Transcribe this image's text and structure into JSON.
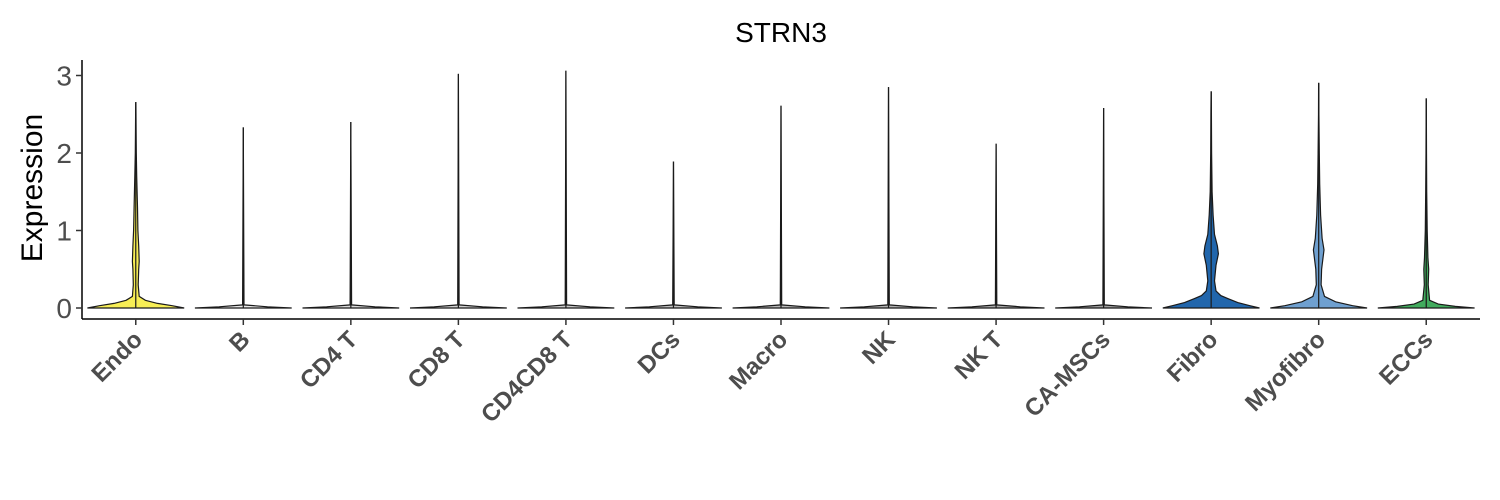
{
  "chart_data": {
    "type": "violin",
    "title": "STRN3",
    "xlabel": "",
    "ylabel": "Expression",
    "ylim": [
      -0.15,
      3.2
    ],
    "yticks": [
      0,
      1,
      2,
      3
    ],
    "grid": false,
    "legend": "none",
    "categories": [
      "Endo",
      "B",
      "CD4 T",
      "CD8 T",
      "CD4CD8 T",
      "DCs",
      "Macro",
      "NK",
      "NK T",
      "CA-MSCs",
      "Fibro",
      "Myofibro",
      "ECCs"
    ],
    "colors": [
      "#F7EE55",
      "#E8E8E8",
      "#D9D9D9",
      "#D0D0D0",
      "#C8C8C8",
      "#C0C0C0",
      "#B8B8B8",
      "#B0B0B0",
      "#A8A8A8",
      "#A0A0A0",
      "#2166AC",
      "#6FA0D0",
      "#41AB5D"
    ],
    "max_values": [
      2.65,
      2.33,
      2.4,
      3.02,
      3.06,
      1.89,
      2.61,
      2.85,
      2.12,
      2.58,
      2.79,
      2.9,
      2.7
    ],
    "density_profiles": [
      [
        [
          0,
          1.0
        ],
        [
          0.03,
          0.75
        ],
        [
          0.06,
          0.45
        ],
        [
          0.1,
          0.2
        ],
        [
          0.15,
          0.07
        ],
        [
          0.3,
          0.05
        ],
        [
          0.5,
          0.06
        ],
        [
          0.6,
          0.07
        ],
        [
          0.8,
          0.06
        ],
        [
          1.0,
          0.045
        ],
        [
          1.3,
          0.035
        ],
        [
          1.7,
          0.02
        ],
        [
          2.0,
          0.01
        ],
        [
          2.3,
          0.006
        ],
        [
          2.65,
          0.002
        ]
      ],
      [
        [
          0,
          1.0
        ],
        [
          0.015,
          0.5
        ],
        [
          0.04,
          0.015
        ],
        [
          2.33,
          0.0
        ]
      ],
      [
        [
          0,
          1.0
        ],
        [
          0.015,
          0.5
        ],
        [
          0.04,
          0.015
        ],
        [
          2.4,
          0.0
        ]
      ],
      [
        [
          0,
          1.0
        ],
        [
          0.015,
          0.5
        ],
        [
          0.04,
          0.015
        ],
        [
          3.02,
          0.0
        ]
      ],
      [
        [
          0,
          1.0
        ],
        [
          0.015,
          0.5
        ],
        [
          0.04,
          0.015
        ],
        [
          3.06,
          0.0
        ]
      ],
      [
        [
          0,
          1.0
        ],
        [
          0.015,
          0.5
        ],
        [
          0.04,
          0.015
        ],
        [
          1.89,
          0.0
        ]
      ],
      [
        [
          0,
          1.0
        ],
        [
          0.015,
          0.5
        ],
        [
          0.04,
          0.015
        ],
        [
          2.61,
          0.0
        ]
      ],
      [
        [
          0,
          1.0
        ],
        [
          0.015,
          0.5
        ],
        [
          0.04,
          0.015
        ],
        [
          2.85,
          0.0
        ]
      ],
      [
        [
          0,
          1.0
        ],
        [
          0.015,
          0.5
        ],
        [
          0.04,
          0.015
        ],
        [
          2.12,
          0.0
        ]
      ],
      [
        [
          0,
          1.0
        ],
        [
          0.015,
          0.5
        ],
        [
          0.04,
          0.015
        ],
        [
          2.58,
          0.0
        ]
      ],
      [
        [
          0,
          1.0
        ],
        [
          0.03,
          0.8
        ],
        [
          0.07,
          0.55
        ],
        [
          0.12,
          0.35
        ],
        [
          0.16,
          0.2
        ],
        [
          0.22,
          0.1
        ],
        [
          0.35,
          0.07
        ],
        [
          0.55,
          0.1
        ],
        [
          0.7,
          0.15
        ],
        [
          0.8,
          0.13
        ],
        [
          0.95,
          0.07
        ],
        [
          1.2,
          0.04
        ],
        [
          1.5,
          0.02
        ],
        [
          2.0,
          0.01
        ],
        [
          2.5,
          0.005
        ],
        [
          2.79,
          0.002
        ]
      ],
      [
        [
          0,
          1.0
        ],
        [
          0.03,
          0.7
        ],
        [
          0.08,
          0.35
        ],
        [
          0.15,
          0.12
        ],
        [
          0.3,
          0.05
        ],
        [
          0.5,
          0.06
        ],
        [
          0.75,
          0.11
        ],
        [
          0.9,
          0.07
        ],
        [
          1.2,
          0.04
        ],
        [
          1.6,
          0.02
        ],
        [
          2.0,
          0.012
        ],
        [
          2.5,
          0.005
        ],
        [
          2.9,
          0.002
        ]
      ],
      [
        [
          0,
          1.0
        ],
        [
          0.02,
          0.6
        ],
        [
          0.05,
          0.25
        ],
        [
          0.1,
          0.07
        ],
        [
          0.3,
          0.04
        ],
        [
          0.5,
          0.05
        ],
        [
          0.65,
          0.035
        ],
        [
          1.0,
          0.02
        ],
        [
          1.5,
          0.01
        ],
        [
          2.0,
          0.005
        ],
        [
          2.7,
          0.001
        ]
      ]
    ]
  }
}
